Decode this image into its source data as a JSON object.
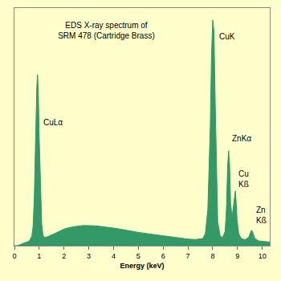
{
  "chart_data": {
    "type": "area",
    "title": "EDS X-ray spectrum of\nSRM 478 (Cartridge Brass)",
    "x_label": "Energy (keV)",
    "x": [
      0,
      0.1,
      0.2,
      0.3,
      0.4,
      0.5,
      0.6,
      0.7,
      0.75,
      0.8,
      0.85,
      0.9,
      0.93,
      0.96,
      1.0,
      1.05,
      1.1,
      1.15,
      1.2,
      1.3,
      1.4,
      1.5,
      1.6,
      1.8,
      2.0,
      2.2,
      2.4,
      2.6,
      2.8,
      3.0,
      3.2,
      3.4,
      3.6,
      3.8,
      4.0,
      4.3,
      4.6,
      5.0,
      5.4,
      5.8,
      6.2,
      6.6,
      7.0,
      7.3,
      7.6,
      7.7,
      7.8,
      7.9,
      7.95,
      8.0,
      8.05,
      8.1,
      8.15,
      8.2,
      8.3,
      8.4,
      8.5,
      8.55,
      8.6,
      8.64,
      8.68,
      8.72,
      8.78,
      8.84,
      8.88,
      8.91,
      8.94,
      8.98,
      9.05,
      9.15,
      9.3,
      9.45,
      9.52,
      9.57,
      9.62,
      9.7,
      9.85,
      10.0,
      10.15,
      10.3
    ],
    "values": [
      0,
      0,
      0.3,
      0.8,
      1.2,
      1.5,
      2,
      4,
      8,
      20,
      45,
      66,
      72,
      66,
      45,
      22,
      9,
      4.5,
      3.5,
      3.6,
      4,
      4.5,
      5,
      6,
      7,
      7.6,
      8,
      8.3,
      8.5,
      8.5,
      8.4,
      8.2,
      8,
      7.7,
      7.4,
      6.9,
      6.3,
      5.6,
      5,
      4.4,
      3.8,
      3.2,
      2.8,
      2.6,
      3,
      5,
      15,
      50,
      80,
      95,
      90,
      60,
      28,
      10,
      4,
      3.5,
      6,
      15,
      33,
      40,
      34,
      18,
      12,
      18,
      22,
      23,
      19,
      11,
      5,
      3,
      2.5,
      3.5,
      5.5,
      6.5,
      5.5,
      3,
      2,
      1.8,
      1.6,
      1.5
    ],
    "color": "#339966",
    "xlim": [
      0,
      10.3
    ],
    "xticks": [
      0,
      1,
      2,
      3,
      4,
      5,
      6,
      7,
      8,
      9,
      10
    ],
    "ylim": [
      0,
      100
    ],
    "tick_labels": "x",
    "grid": false,
    "annotations": [
      {
        "text": "CuLα",
        "x": 1.1,
        "y": 52
      },
      {
        "text": "CuK",
        "x": 8.2,
        "y": 88
      },
      {
        "text": "ZnKα",
        "x": 8.72,
        "y": 45
      },
      {
        "text": "Cu\nKß",
        "x": 8.98,
        "y": 28
      },
      {
        "text": "Zn\nKß",
        "x": 9.68,
        "y": 13
      }
    ]
  }
}
